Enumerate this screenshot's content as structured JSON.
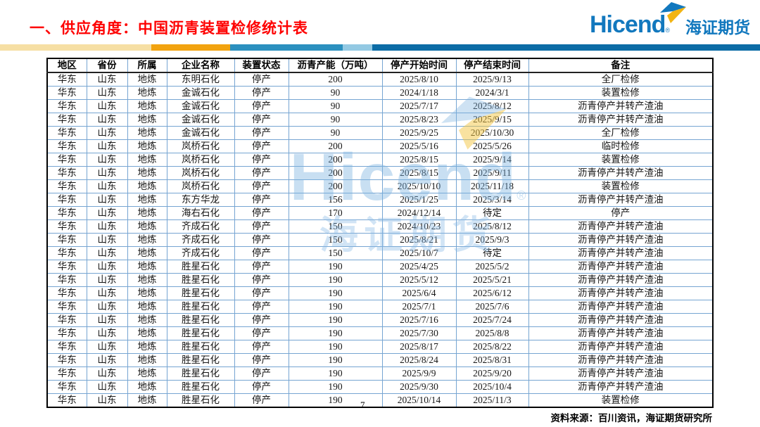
{
  "slide": {
    "title": "一、供应角度：中国沥青装置检修统计表",
    "page_number": "7",
    "source_note": "资料来源：百川资讯，海证期货研究所"
  },
  "logo": {
    "brand_en": "Hicend",
    "reg": "®",
    "brand_cn": "海证期货",
    "arrow_icon": "swoosh-arrow-icon"
  },
  "watermark": {
    "brand_en": "Hicend",
    "reg": "®",
    "brand_cn": "海证期货"
  },
  "colors": {
    "title_red": "#fe0000",
    "brand_blue": "#1278be",
    "logo_arrow_yellow": "#f2b412",
    "table_grid_blue": "#76a5d2",
    "table_outer_border": "#000000",
    "bar_pale_yellow": "#f6dfa4",
    "bar_orange": "#f2a30f",
    "bar_mid_blue": "#2b90bf",
    "bar_light_blue": "#93c9e3",
    "bar_dark_blue": "#0c6ca6"
  },
  "table": {
    "headers": [
      "地区",
      "省份",
      "所属",
      "企业名称",
      "装置状态",
      "沥青产能（万吨）",
      "停产开始时间",
      "停产结束时间",
      "备注"
    ],
    "rows": [
      [
        "华东",
        "山东",
        "地炼",
        "东明石化",
        "停产",
        "200",
        "2025/8/10",
        "2025/9/13",
        "全厂检修"
      ],
      [
        "华东",
        "山东",
        "地炼",
        "金诚石化",
        "停产",
        "90",
        "2024/1/18",
        "2024/3/1",
        "装置检修"
      ],
      [
        "华东",
        "山东",
        "地炼",
        "金诚石化",
        "停产",
        "90",
        "2025/7/17",
        "2025/8/12",
        "沥青停产并转产渣油"
      ],
      [
        "华东",
        "山东",
        "地炼",
        "金诚石化",
        "停产",
        "90",
        "2025/8/23",
        "2025/9/15",
        "沥青停产并转产渣油"
      ],
      [
        "华东",
        "山东",
        "地炼",
        "金诚石化",
        "停产",
        "90",
        "2025/9/25",
        "2025/10/30",
        "全厂检修"
      ],
      [
        "华东",
        "山东",
        "地炼",
        "岚桥石化",
        "停产",
        "200",
        "2025/5/16",
        "2025/5/26",
        "临时检修"
      ],
      [
        "华东",
        "山东",
        "地炼",
        "岚桥石化",
        "停产",
        "200",
        "2025/8/15",
        "2025/9/14",
        "装置检修"
      ],
      [
        "华东",
        "山东",
        "地炼",
        "岚桥石化",
        "停产",
        "200",
        "2025/8/15",
        "2025/9/11",
        "沥青停产并转产渣油"
      ],
      [
        "华东",
        "山东",
        "地炼",
        "岚桥石化",
        "停产",
        "200",
        "2025/10/10",
        "2025/11/18",
        "装置检修"
      ],
      [
        "华东",
        "山东",
        "地炼",
        "东方华龙",
        "停产",
        "156",
        "2025/1/25",
        "2025/3/14",
        "沥青停产并转产渣油"
      ],
      [
        "华东",
        "山东",
        "地炼",
        "海右石化",
        "停产",
        "170",
        "2024/12/14",
        "待定",
        "停产"
      ],
      [
        "华东",
        "山东",
        "地炼",
        "齐成石化",
        "停产",
        "150",
        "2024/10/23",
        "2025/8/12",
        "沥青停产并转产渣油"
      ],
      [
        "华东",
        "山东",
        "地炼",
        "齐成石化",
        "停产",
        "150",
        "2025/8/21",
        "2025/9/3",
        "沥青停产并转产渣油"
      ],
      [
        "华东",
        "山东",
        "地炼",
        "齐成石化",
        "停产",
        "150",
        "2025/10/7",
        "待定",
        "沥青停产并转产渣油"
      ],
      [
        "华东",
        "山东",
        "地炼",
        "胜星石化",
        "停产",
        "190",
        "2025/4/25",
        "2025/5/2",
        "沥青停产并转产渣油"
      ],
      [
        "华东",
        "山东",
        "地炼",
        "胜星石化",
        "停产",
        "190",
        "2025/5/12",
        "2025/5/21",
        "沥青停产并转产渣油"
      ],
      [
        "华东",
        "山东",
        "地炼",
        "胜星石化",
        "停产",
        "190",
        "2025/6/4",
        "2025/6/12",
        "沥青停产并转产渣油"
      ],
      [
        "华东",
        "山东",
        "地炼",
        "胜星石化",
        "停产",
        "190",
        "2025/7/1",
        "2025/7/6",
        "沥青停产并转产渣油"
      ],
      [
        "华东",
        "山东",
        "地炼",
        "胜星石化",
        "停产",
        "190",
        "2025/7/16",
        "2025/7/24",
        "沥青停产并转产渣油"
      ],
      [
        "华东",
        "山东",
        "地炼",
        "胜星石化",
        "停产",
        "190",
        "2025/7/30",
        "2025/8/8",
        "沥青停产并转产渣油"
      ],
      [
        "华东",
        "山东",
        "地炼",
        "胜星石化",
        "停产",
        "190",
        "2025/8/17",
        "2025/8/22",
        "沥青停产并转产渣油"
      ],
      [
        "华东",
        "山东",
        "地炼",
        "胜星石化",
        "停产",
        "190",
        "2025/8/24",
        "2025/8/31",
        "沥青停产并转产渣油"
      ],
      [
        "华东",
        "山东",
        "地炼",
        "胜星石化",
        "停产",
        "190",
        "2025/9/9",
        "2025/9/20",
        "沥青停产并转产渣油"
      ],
      [
        "华东",
        "山东",
        "地炼",
        "胜星石化",
        "停产",
        "190",
        "2025/9/30",
        "2025/10/4",
        "沥青停产并转产渣油"
      ],
      [
        "华东",
        "山东",
        "地炼",
        "胜星石化",
        "停产",
        "190",
        "2025/10/14",
        "2025/11/3",
        "装置检修"
      ]
    ]
  }
}
